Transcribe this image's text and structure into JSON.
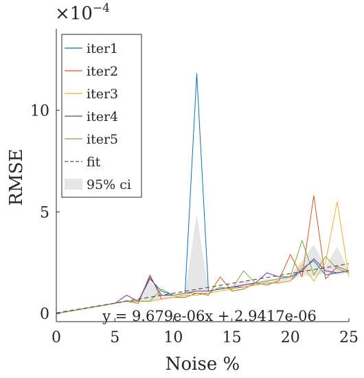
{
  "chart_data": {
    "type": "line",
    "title": "",
    "xlabel": "Noise %",
    "ylabel": "RMSE",
    "y_exponent_label": "×10",
    "y_exponent_power": "−4",
    "xlim": [
      0,
      25
    ],
    "ylim": [
      -0.4,
      14
    ],
    "x_ticks": [
      0,
      5,
      10,
      15,
      20,
      25
    ],
    "y_ticks": [
      0,
      5,
      10
    ],
    "grid": false,
    "legend_position": "top-left",
    "x": [
      0,
      1,
      2,
      3,
      4,
      5,
      6,
      7,
      8,
      9,
      10,
      11,
      12,
      13,
      14,
      15,
      16,
      17,
      18,
      19,
      20,
      21,
      22,
      23,
      24,
      25
    ],
    "series": [
      {
        "name": "iter1",
        "color": "#0072BD",
        "values": [
          0,
          0.1,
          0.2,
          0.3,
          0.4,
          0.5,
          0.6,
          0.6,
          1.7,
          1.1,
          0.9,
          1.0,
          11.8,
          1.1,
          1.2,
          1.3,
          1.3,
          1.4,
          1.5,
          1.5,
          1.6,
          2.2,
          2.6,
          1.9,
          2.0,
          2.1
        ]
      },
      {
        "name": "iter2",
        "color": "#D95319",
        "values": [
          0,
          0.1,
          0.2,
          0.3,
          0.4,
          0.5,
          0.6,
          0.5,
          1.9,
          0.7,
          0.8,
          0.8,
          1.0,
          0.9,
          1.8,
          1.1,
          1.2,
          1.5,
          1.4,
          1.6,
          2.9,
          1.8,
          5.8,
          1.7,
          2.3,
          2.1
        ]
      },
      {
        "name": "iter3",
        "color": "#EDB120",
        "values": [
          0,
          0.1,
          0.2,
          0.3,
          0.4,
          0.5,
          0.6,
          0.6,
          0.6,
          0.7,
          0.8,
          0.9,
          0.9,
          1.0,
          1.1,
          1.2,
          1.3,
          1.4,
          1.5,
          1.5,
          1.6,
          2.4,
          1.6,
          2.5,
          5.5,
          1.8
        ]
      },
      {
        "name": "iter4",
        "color": "#7E2F8E",
        "values": [
          0,
          0.1,
          0.2,
          0.3,
          0.4,
          0.5,
          0.9,
          0.6,
          1.8,
          0.9,
          0.9,
          1.0,
          1.1,
          1.1,
          1.2,
          1.3,
          1.4,
          1.5,
          2.0,
          1.8,
          1.8,
          2.1,
          2.7,
          2.1,
          2.0,
          2.1
        ]
      },
      {
        "name": "iter5",
        "color": "#77AC30",
        "values": [
          0,
          0.1,
          0.2,
          0.3,
          0.4,
          0.5,
          0.6,
          0.6,
          0.6,
          1.2,
          0.9,
          1.0,
          1.0,
          1.0,
          1.3,
          1.2,
          2.1,
          1.5,
          1.6,
          1.7,
          1.8,
          3.6,
          1.9,
          2.8,
          2.2,
          2.0
        ]
      }
    ],
    "fit": {
      "name": "fit",
      "color": "#555555",
      "slope": 0.09679,
      "intercept": 0.029417
    },
    "ci": {
      "name": "95% ci",
      "color": "#e6e6e6",
      "lower": [
        0,
        0.1,
        0.2,
        0.3,
        0.4,
        0.5,
        0.6,
        0.6,
        0.6,
        0.7,
        0.8,
        0.9,
        1.1,
        1.1,
        1.2,
        1.2,
        1.3,
        1.4,
        1.5,
        1.5,
        1.6,
        1.9,
        1.8,
        2.0,
        1.9,
        2.0
      ],
      "upper": [
        0,
        0.1,
        0.2,
        0.3,
        0.4,
        0.5,
        0.7,
        0.6,
        1.6,
        0.9,
        0.9,
        1.0,
        4.9,
        1.1,
        1.3,
        1.3,
        1.6,
        1.5,
        1.7,
        1.7,
        1.9,
        2.6,
        3.4,
        2.3,
        3.3,
        2.1
      ]
    },
    "annotation": "y = 9.679e-06x + 2.9417e-06"
  }
}
